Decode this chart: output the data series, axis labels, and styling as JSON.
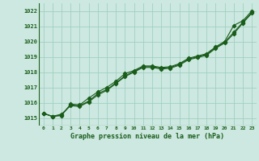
{
  "x": [
    0,
    1,
    2,
    3,
    4,
    5,
    6,
    7,
    8,
    9,
    10,
    11,
    12,
    13,
    14,
    15,
    16,
    17,
    18,
    19,
    20,
    21,
    22,
    23
  ],
  "line1": [
    1015.3,
    1015.1,
    1015.15,
    1015.9,
    1015.85,
    1016.3,
    1016.7,
    1017.0,
    1017.4,
    1017.9,
    1018.1,
    1018.4,
    1018.4,
    1018.3,
    1018.35,
    1018.55,
    1018.9,
    1019.05,
    1019.2,
    1019.65,
    1020.0,
    1021.05,
    1021.35,
    1022.0
  ],
  "line2": [
    1015.3,
    1015.1,
    1015.2,
    1015.85,
    1015.8,
    1016.1,
    1016.6,
    1016.85,
    1017.3,
    1017.75,
    1018.05,
    1018.35,
    1018.35,
    1018.25,
    1018.3,
    1018.5,
    1018.85,
    1019.0,
    1019.15,
    1019.6,
    1019.95,
    1020.6,
    1021.25,
    1021.9
  ],
  "line3": [
    1015.3,
    1015.1,
    1015.25,
    1015.8,
    1015.75,
    1016.05,
    1016.5,
    1016.8,
    1017.25,
    1017.7,
    1018.0,
    1018.3,
    1018.3,
    1018.2,
    1018.25,
    1018.45,
    1018.8,
    1018.95,
    1019.1,
    1019.55,
    1019.9,
    1020.5,
    1021.2,
    1021.85
  ],
  "background_color": "#cce8e0",
  "grid_color": "#99ccbb",
  "line_color": "#1a5c1a",
  "ylabel_values": [
    1015,
    1016,
    1017,
    1018,
    1019,
    1020,
    1021,
    1022
  ],
  "xlabel_label": "Graphe pression niveau de la mer (hPa)",
  "ylim": [
    1014.5,
    1022.5
  ],
  "xlim": [
    -0.5,
    23.5
  ],
  "marker": "D",
  "marker_size": 2.2,
  "line_width": 0.8
}
